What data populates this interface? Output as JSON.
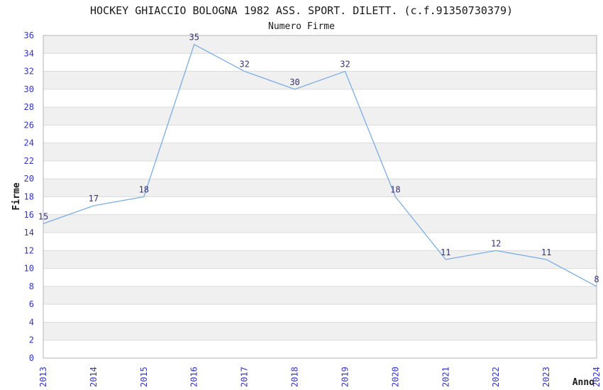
{
  "chart_data": {
    "type": "line",
    "title": "HOCKEY GHIACCIO BOLOGNA 1982 ASS. SPORT. DILETT. (c.f.91350730379)",
    "subtitle": "Numero Firme",
    "xlabel": "Anno",
    "ylabel": "Firme",
    "categories": [
      "2013",
      "2014",
      "2015",
      "2016",
      "2017",
      "2018",
      "2019",
      "2020",
      "2021",
      "2022",
      "2023",
      "2024"
    ],
    "values": [
      15,
      17,
      18,
      35,
      32,
      30,
      32,
      18,
      11,
      12,
      11,
      8
    ],
    "ylim": [
      0,
      36
    ],
    "ytick_step": 2,
    "grid": true,
    "legend": false,
    "point_labels_visible": true,
    "colors": {
      "line": "#7aade8",
      "tick_label": "#3333cc",
      "point_label": "#333377",
      "band_fill": "#f0f0f0",
      "gridline": "#dcdcdc",
      "plot_border": "#b3b3b3",
      "text": "#1a1a1a",
      "background": "#ffffff"
    }
  }
}
